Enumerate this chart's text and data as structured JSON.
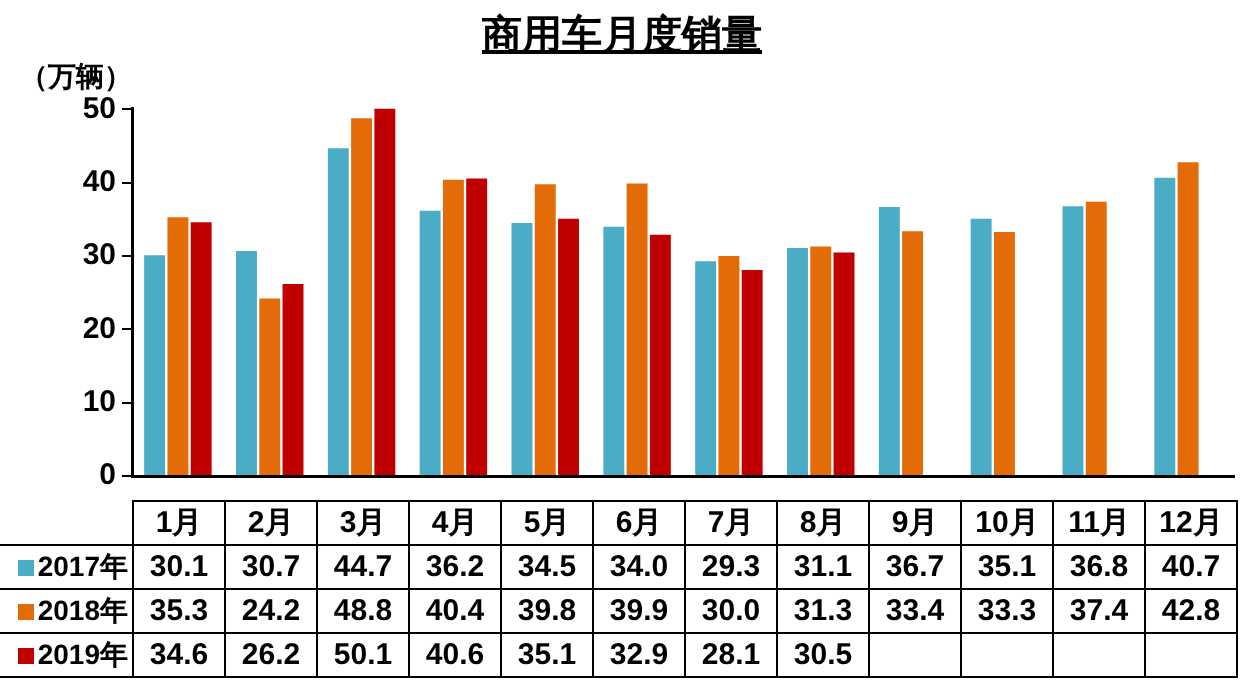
{
  "chart_data": {
    "type": "bar",
    "title": "商用车月度销量",
    "ylabel": "（万辆）",
    "categories": [
      "1月",
      "2月",
      "3月",
      "4月",
      "5月",
      "6月",
      "7月",
      "8月",
      "9月",
      "10月",
      "11月",
      "12月"
    ],
    "series": [
      {
        "name": "2017年",
        "color": "#4bacc6",
        "values": [
          30.1,
          30.7,
          44.7,
          36.2,
          34.5,
          34.0,
          29.3,
          31.1,
          36.7,
          35.1,
          36.8,
          40.7
        ],
        "value_labels": [
          "30.1",
          "30.7",
          "44.7",
          "36.2",
          "34.5",
          "34.0",
          "29.3",
          "31.1",
          "36.7",
          "35.1",
          "36.8",
          "40.7"
        ]
      },
      {
        "name": "2018年",
        "color": "#e36c09",
        "values": [
          35.3,
          24.2,
          48.8,
          40.4,
          39.8,
          39.9,
          30.0,
          31.3,
          33.4,
          33.3,
          37.4,
          42.8
        ],
        "value_labels": [
          "35.3",
          "24.2",
          "48.8",
          "40.4",
          "39.8",
          "39.9",
          "30.0",
          "31.3",
          "33.4",
          "33.3",
          "37.4",
          "42.8"
        ]
      },
      {
        "name": "2019年",
        "color": "#c00000",
        "values": [
          34.6,
          26.2,
          50.1,
          40.6,
          35.1,
          32.9,
          28.1,
          30.5,
          null,
          null,
          null,
          null
        ],
        "value_labels": [
          "34.6",
          "26.2",
          "50.1",
          "40.6",
          "35.1",
          "32.9",
          "28.1",
          "30.5",
          null,
          null,
          null,
          null
        ]
      }
    ],
    "ylim": [
      0,
      50.2
    ],
    "yticks": [
      0,
      10,
      20,
      30,
      40,
      50
    ],
    "grid": false,
    "legend": "left"
  }
}
